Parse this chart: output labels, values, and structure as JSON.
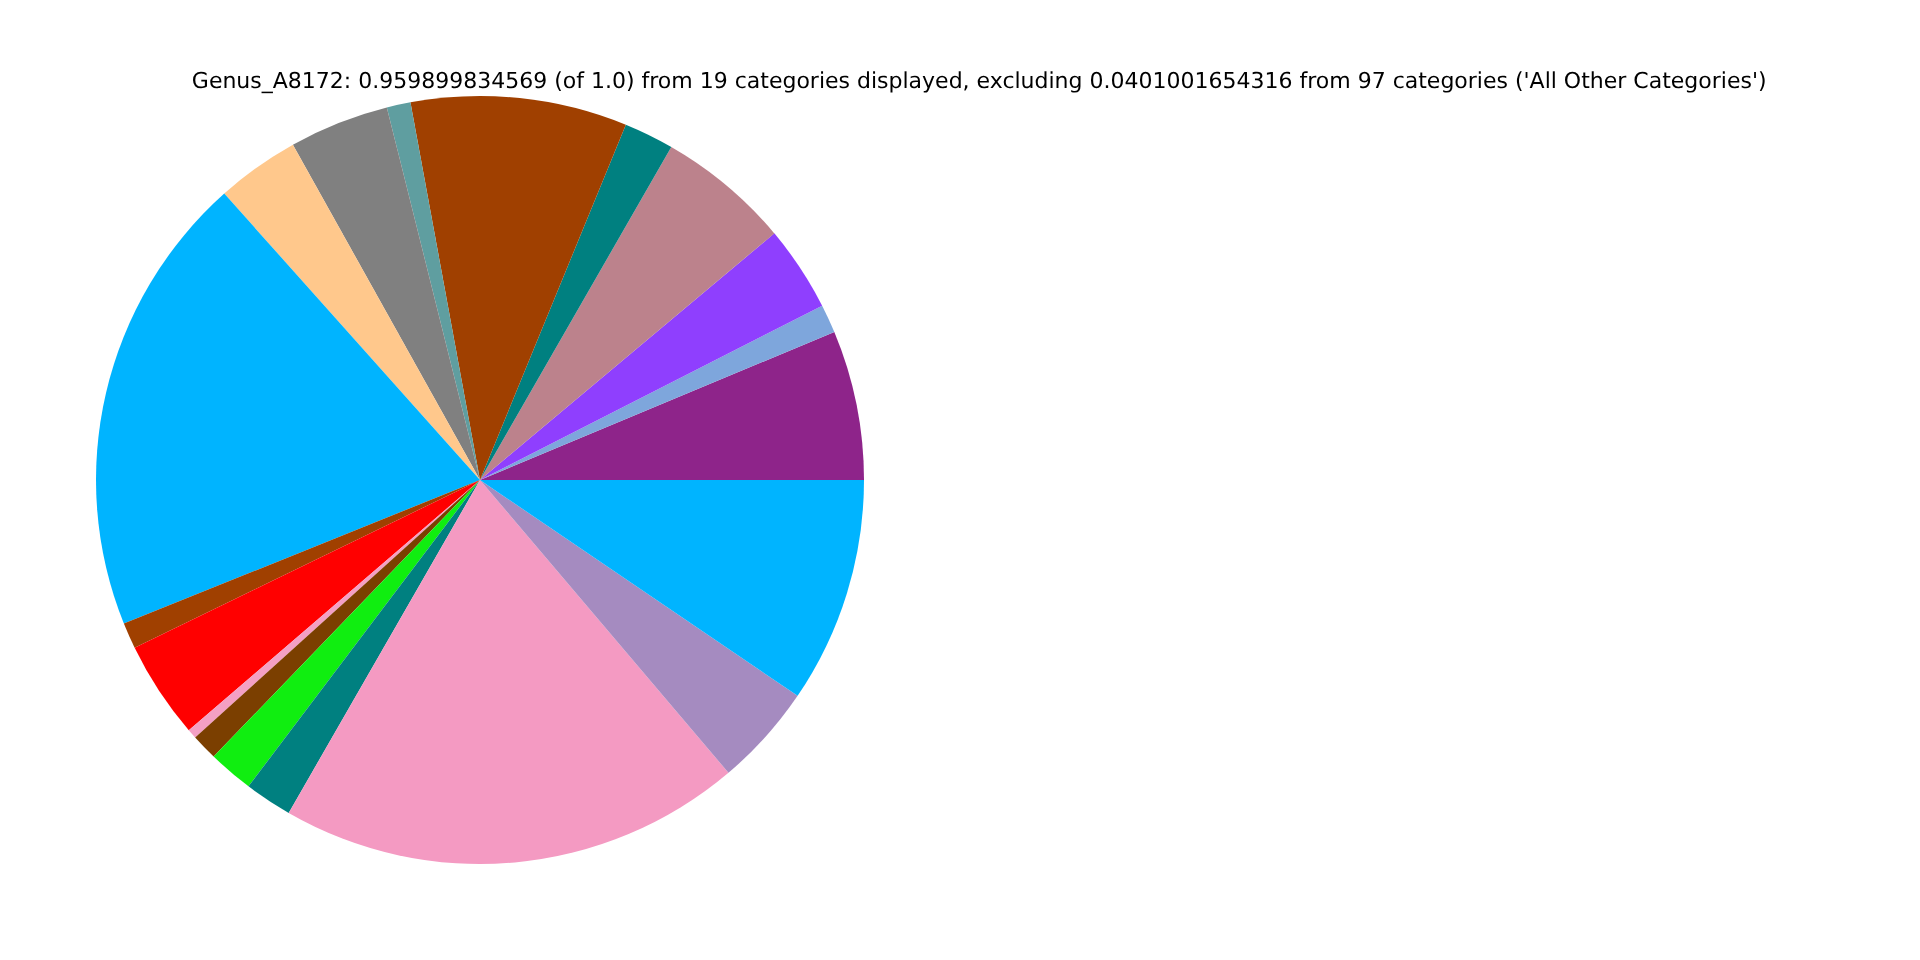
{
  "chart_data": {
    "type": "pie",
    "title": "Genus_A8172: 0.959899834569 (of 1.0) from 19 categories displayed, excluding 0.0401001654316 from 97 categories ('All Other Categories')",
    "categories": [
      null,
      null,
      null,
      null,
      null,
      null,
      null,
      null,
      null,
      null,
      null,
      null,
      null,
      null,
      null,
      null,
      null,
      null,
      null
    ],
    "values": [
      6.3,
      1.2,
      3.6,
      5.6,
      2.1,
      9.1,
      1.0,
      4.2,
      3.5,
      19.5,
      1.1,
      4.1,
      0.4,
      1.1,
      1.9,
      2.0,
      19.5,
      4.3,
      9.5
    ],
    "colors": [
      "#8e248a",
      "#7ea6dc",
      "#8f3ffe",
      "#bc828c",
      "#008080",
      "#a04000",
      "#5f9ea0",
      "#808080",
      "#ffc88c",
      "#00b4ff",
      "#a04000",
      "#ff0000",
      "#f4a0c4",
      "#7b3f00",
      "#10ee10",
      "#008080",
      "#f49ac2",
      "#a58bc0",
      "#00b4ff"
    ],
    "legend": false
  }
}
